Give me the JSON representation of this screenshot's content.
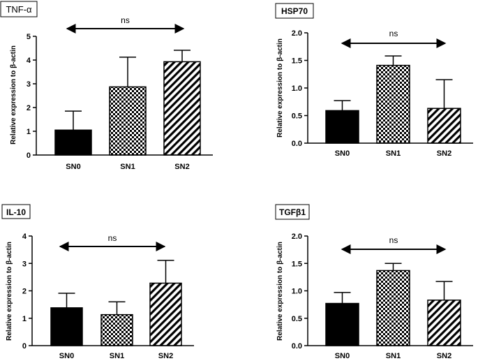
{
  "figure": {
    "ylabel": "Relative expression to β-actin",
    "annotation": "ns"
  },
  "chart_data": [
    {
      "type": "bar",
      "title": "TNF-α",
      "title_style": "plain",
      "categories": [
        "SN0",
        "SN1",
        "SN2"
      ],
      "values": [
        1.05,
        2.87,
        3.93
      ],
      "errors": [
        0.8,
        1.25,
        0.48
      ],
      "patterns": [
        "solid",
        "checker",
        "diagonal"
      ],
      "ylabel": "Relative expression to β-actin",
      "ylim": [
        0,
        5
      ],
      "yticks": [
        "0",
        "1",
        "2",
        "3",
        "4",
        "5"
      ],
      "annotation": "ns"
    },
    {
      "type": "bar",
      "title": "HSP70",
      "title_style": "bold",
      "categories": [
        "SN0",
        "SN1",
        "SN2"
      ],
      "values": [
        0.59,
        1.41,
        0.63
      ],
      "errors": [
        0.18,
        0.17,
        0.52
      ],
      "patterns": [
        "solid",
        "checker",
        "diagonal"
      ],
      "ylabel": "Relative expression to β-actin",
      "ylim": [
        0,
        2
      ],
      "yticks": [
        "0.0",
        "0.5",
        "1.0",
        "1.5",
        "2.0"
      ],
      "annotation": "ns"
    },
    {
      "type": "bar",
      "title": "IL-10",
      "title_style": "bold",
      "categories": [
        "SN0",
        "SN1",
        "SN2"
      ],
      "values": [
        1.38,
        1.13,
        2.28
      ],
      "errors": [
        0.53,
        0.47,
        0.83
      ],
      "patterns": [
        "solid",
        "checker",
        "diagonal"
      ],
      "ylabel": "Relative expression to β-actin",
      "ylim": [
        0,
        4
      ],
      "yticks": [
        "0",
        "1",
        "2",
        "3",
        "4"
      ],
      "annotation": "ns"
    },
    {
      "type": "bar",
      "title": "TGFβ1",
      "title_style": "bold",
      "categories": [
        "SN0",
        "SN1",
        "SN2"
      ],
      "values": [
        0.77,
        1.37,
        0.83
      ],
      "errors": [
        0.2,
        0.13,
        0.34
      ],
      "patterns": [
        "solid",
        "checker",
        "diagonal"
      ],
      "ylabel": "Relative expression to β-actin",
      "ylim": [
        0,
        2
      ],
      "yticks": [
        "0.0",
        "0.5",
        "1.0",
        "1.5",
        "2.0"
      ],
      "annotation": "ns"
    }
  ]
}
